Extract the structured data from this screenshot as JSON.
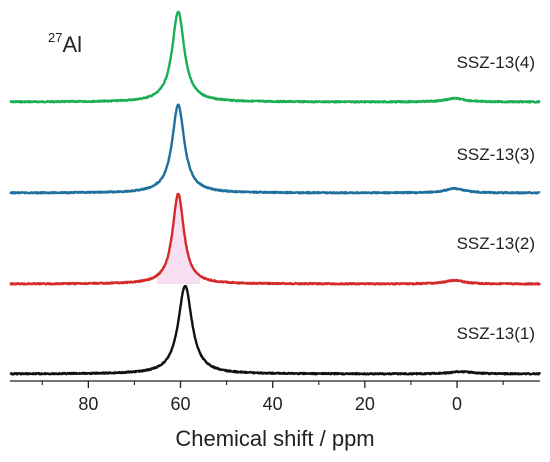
{
  "chart_data": {
    "type": "line",
    "title": "",
    "nucleus_label": {
      "mass_number": "27",
      "element": "Al"
    },
    "xlabel": "Chemical shift / ppm",
    "ylabel": "",
    "xlim": [
      97,
      -18
    ],
    "x_reversed": true,
    "xticks": [
      80,
      60,
      40,
      20,
      0
    ],
    "xtick_labels": [
      "80",
      "60",
      "40",
      "20",
      "0"
    ],
    "grid": false,
    "legend": "none",
    "series": [
      {
        "name": "SSZ-13(4)",
        "color": "#1aaf54",
        "baseline_level": 3,
        "offset_level": 3,
        "peaks": [
          {
            "center": 60.5,
            "height": 1.0,
            "width": 1.6
          },
          {
            "center": 0.5,
            "height": 0.04,
            "width": 2.5
          }
        ]
      },
      {
        "name": "SSZ-13(3)",
        "color": "#1f6f9f",
        "baseline_level": 2,
        "offset_level": 2,
        "peaks": [
          {
            "center": 60.5,
            "height": 0.98,
            "width": 1.6
          },
          {
            "center": 0.5,
            "height": 0.05,
            "width": 2.5
          }
        ]
      },
      {
        "name": "SSZ-13(2)",
        "color": "#d42a2a",
        "baseline_level": 1,
        "offset_level": 1,
        "fill": "#f9dff2",
        "peaks": [
          {
            "center": 60.5,
            "height": 1.0,
            "width": 1.5
          },
          {
            "center": 0.5,
            "height": 0.04,
            "width": 2.5
          }
        ]
      },
      {
        "name": "SSZ-13(1)",
        "color": "#111111",
        "baseline_level": 0,
        "offset_level": 0,
        "peaks": [
          {
            "center": 59.0,
            "height": 0.98,
            "width": 1.8
          },
          {
            "center": -1.0,
            "height": 0.025,
            "width": 3.0
          }
        ]
      }
    ]
  }
}
